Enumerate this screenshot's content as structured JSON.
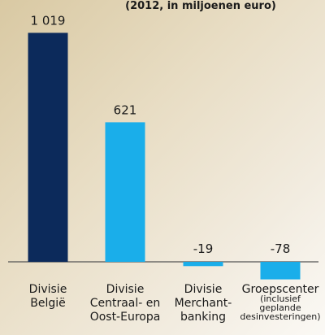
{
  "chart_data": {
    "type": "bar",
    "subtitle": "(2012, in miljoenen euro)",
    "categories": [
      "Divisie\nBelgië",
      "Divisie\nCentraal- en\nOost-Europa",
      "Divisie\nMerchant-\nbanking",
      "Groepscenter\n(inclusief\ngeplande\ndesinvesteringen)"
    ],
    "values": [
      1019,
      621,
      -19,
      -78
    ],
    "value_labels": [
      "1 019",
      "621",
      "-19",
      "-78"
    ],
    "colors": [
      "#0c2a5b",
      "#1aaeea",
      "#1aaeea",
      "#1aaeea"
    ],
    "ylim": [
      -150,
      1100
    ]
  }
}
